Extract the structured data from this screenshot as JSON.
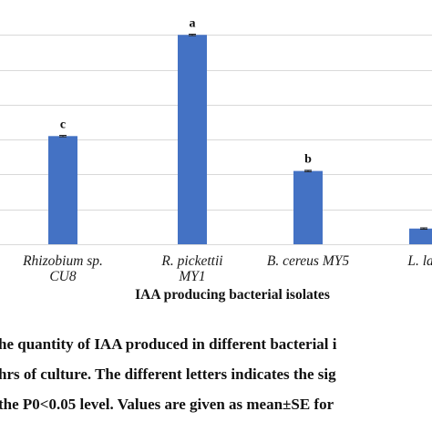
{
  "chart_data": {
    "type": "bar",
    "title": "",
    "xlabel": "IAA producing bacterial isolates",
    "ylabel": "",
    "categories": [
      [
        "Rhizobium sp.",
        "CU8"
      ],
      [
        "R. pickettii",
        "MY1"
      ],
      [
        "B. cereus MY5"
      ],
      [
        "L. lac"
      ]
    ],
    "values": [
      31,
      60,
      21,
      4.5
    ],
    "errors": [
      0.2,
      0.2,
      0.2,
      0.2
    ],
    "significance_letters": [
      "c",
      "a",
      "b",
      ""
    ],
    "ylim": [
      0,
      70
    ],
    "gridlines": [
      10,
      20,
      30,
      40,
      50,
      60
    ],
    "grid": true,
    "bar_color": "#4472c4",
    "grid_color": "#d9d9d9"
  },
  "caption": {
    "lines": [
      "he quantity of IAA produced in different bacterial i",
      "hrs of culture. The different letters indicates the sig",
      " the P0<0.05 level. Values are given as mean±SE for"
    ]
  }
}
